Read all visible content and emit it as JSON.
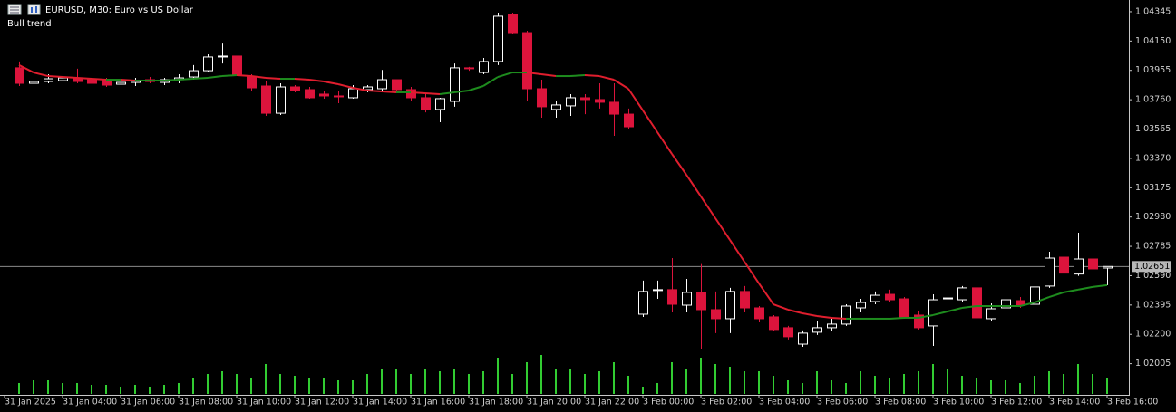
{
  "chart_data": {
    "type": "candlestick",
    "title": "EURUSD, M30:  Euro vs US Dollar",
    "indicator": "Bull trend",
    "x_labels": [
      "31 Jan 2025",
      "31 Jan 04:00",
      "31 Jan 06:00",
      "31 Jan 08:00",
      "31 Jan 10:00",
      "31 Jan 12:00",
      "31 Jan 14:00",
      "31 Jan 16:00",
      "31 Jan 18:00",
      "31 Jan 20:00",
      "31 Jan 22:00",
      "3 Feb 00:00",
      "3 Feb 02:00",
      "3 Feb 04:00",
      "3 Feb 06:00",
      "3 Feb 08:00",
      "3 Feb 10:00",
      "3 Feb 12:00",
      "3 Feb 14:00",
      "3 Feb 16:00"
    ],
    "open": [
      1.03972,
      1.03869,
      1.03881,
      1.03887,
      1.03905,
      1.03893,
      1.03887,
      1.03863,
      1.03875,
      1.03893,
      1.03875,
      1.03893,
      1.03911,
      1.03953,
      1.04044,
      1.0405,
      1.03911,
      1.03851,
      1.0367,
      1.03845,
      1.03827,
      1.03797,
      1.03785,
      1.03773,
      1.03827,
      1.03833,
      1.03893,
      1.03827,
      1.03773,
      1.03695,
      1.03749,
      1.03972,
      1.03941,
      1.04014,
      1.04327,
      1.04206,
      1.03833,
      1.03695,
      1.03719,
      1.03773,
      1.03761,
      1.03743,
      1.03664,
      1.02334,
      1.02491,
      1.02497,
      1.02394,
      1.02479,
      1.02364,
      1.02304,
      1.02485,
      1.02376,
      1.02316,
      1.02244,
      1.02135,
      1.02214,
      1.02244,
      1.02268,
      1.02376,
      1.02418,
      1.02466,
      1.02436,
      1.02328,
      1.02256,
      1.02436,
      1.0243,
      1.02509,
      1.02304,
      1.02376,
      1.02424,
      1.024,
      1.02521,
      1.02713,
      1.02601,
      1.02701,
      1.02641
    ],
    "high": [
      1.04014,
      1.03917,
      1.03929,
      1.03929,
      1.03966,
      1.03917,
      1.03905,
      1.03893,
      1.03905,
      1.03911,
      1.03905,
      1.03929,
      1.0399,
      1.04062,
      1.04133,
      1.0405,
      1.03929,
      1.03881,
      1.03869,
      1.03857,
      1.03845,
      1.03821,
      1.03821,
      1.03857,
      1.03857,
      1.03958,
      1.03893,
      1.03845,
      1.03797,
      1.03773,
      1.04001,
      1.03978,
      1.04038,
      1.04339,
      1.04339,
      1.04218,
      1.03893,
      1.03749,
      1.03797,
      1.03797,
      1.03869,
      1.03869,
      1.03701,
      1.02557,
      1.02557,
      1.02707,
      1.02569,
      1.02667,
      1.02485,
      1.02509,
      1.02521,
      1.02388,
      1.02328,
      1.02256,
      1.02226,
      1.02286,
      1.02304,
      1.024,
      1.02436,
      1.02485,
      1.02497,
      1.02448,
      1.02358,
      1.02466,
      1.02509,
      1.02521,
      1.02521,
      1.02406,
      1.02448,
      1.02448,
      1.02545,
      1.02749,
      1.02762,
      1.02876,
      1.02701,
      1.02653
    ],
    "low": [
      1.03851,
      1.03779,
      1.03869,
      1.03869,
      1.03869,
      1.03851,
      1.03845,
      1.03839,
      1.03851,
      1.03869,
      1.03857,
      1.03869,
      1.03893,
      1.03941,
      1.04001,
      1.03929,
      1.03821,
      1.03652,
      1.03658,
      1.03809,
      1.03767,
      1.03767,
      1.03737,
      1.03767,
      1.03809,
      1.03821,
      1.03815,
      1.03749,
      1.03676,
      1.0361,
      1.03713,
      1.03953,
      1.03929,
      1.0399,
      1.04194,
      1.03749,
      1.0364,
      1.0364,
      1.03652,
      1.03664,
      1.03701,
      1.0352,
      1.03568,
      1.02316,
      1.02436,
      1.02346,
      1.02346,
      1.02105,
      1.02208,
      1.02208,
      1.02346,
      1.0228,
      1.0222,
      1.02166,
      1.02117,
      1.02196,
      1.0222,
      1.02256,
      1.02346,
      1.024,
      1.02418,
      1.02304,
      1.02232,
      1.02123,
      1.02406,
      1.02412,
      1.02268,
      1.02292,
      1.02352,
      1.02376,
      1.02376,
      1.02509,
      1.02607,
      1.02589,
      1.02617,
      1.02527
    ],
    "close": [
      1.03869,
      1.03881,
      1.03899,
      1.03905,
      1.03881,
      1.03869,
      1.03857,
      1.03875,
      1.03887,
      1.03881,
      1.03893,
      1.03905,
      1.03953,
      1.04044,
      1.0405,
      1.03929,
      1.03839,
      1.0367,
      1.03845,
      1.03821,
      1.03773,
      1.03785,
      1.03779,
      1.03833,
      1.03845,
      1.03893,
      1.03827,
      1.03773,
      1.03695,
      1.03767,
      1.03972,
      1.03966,
      1.04014,
      1.04315,
      1.04206,
      1.03833,
      1.03713,
      1.03725,
      1.03773,
      1.03761,
      1.03743,
      1.03664,
      1.0358,
      1.02485,
      1.02497,
      1.024,
      1.02479,
      1.02364,
      1.02304,
      1.02485,
      1.02376,
      1.02304,
      1.02232,
      1.02184,
      1.02208,
      1.02244,
      1.02268,
      1.02388,
      1.02412,
      1.0246,
      1.0243,
      1.02316,
      1.02244,
      1.0243,
      1.02442,
      1.02509,
      1.0231,
      1.0237,
      1.0243,
      1.02394,
      1.02515,
      1.02707,
      1.02607,
      1.02701,
      1.02635,
      1.02651
    ],
    "volume": [
      12,
      15,
      15,
      12,
      12,
      10,
      10,
      8,
      10,
      8,
      10,
      12,
      18,
      22,
      25,
      22,
      18,
      33,
      22,
      20,
      18,
      18,
      15,
      15,
      22,
      28,
      28,
      22,
      28,
      25,
      28,
      22,
      25,
      40,
      22,
      35,
      43,
      28,
      28,
      22,
      25,
      35,
      20,
      8,
      12,
      35,
      28,
      40,
      33,
      30,
      25,
      25,
      20,
      15,
      12,
      25,
      15,
      12,
      25,
      20,
      18,
      22,
      25,
      33,
      28,
      20,
      18,
      15,
      15,
      12,
      20,
      25,
      22,
      33,
      22,
      18
    ],
    "volume_color": "#32cd32",
    "bull_color": "#ffffff",
    "bear_color": "#dc143c",
    "ma": {
      "values": [
        1.0399,
        1.03941,
        1.03917,
        1.03911,
        1.03905,
        1.03899,
        1.03893,
        1.03893,
        1.03887,
        1.03887,
        1.03887,
        1.03893,
        1.03899,
        1.03905,
        1.03917,
        1.03923,
        1.03917,
        1.03905,
        1.03899,
        1.03899,
        1.03893,
        1.03881,
        1.03863,
        1.03839,
        1.03821,
        1.03815,
        1.03809,
        1.03809,
        1.03803,
        1.03797,
        1.03809,
        1.03821,
        1.03851,
        1.03911,
        1.03941,
        1.03941,
        1.03929,
        1.03917,
        1.03917,
        1.03923,
        1.03917,
        1.03893,
        1.03833,
        1.03689,
        1.03544,
        1.034,
        1.03261,
        1.03117,
        1.02972,
        1.02828,
        1.02683,
        1.02539,
        1.024,
        1.02364,
        1.0234,
        1.02322,
        1.0231,
        1.02304,
        1.02304,
        1.02304,
        1.02304,
        1.0231,
        1.0231,
        1.02328,
        1.02352,
        1.02376,
        1.02388,
        1.02388,
        1.02388,
        1.02388,
        1.02412,
        1.02448,
        1.02479,
        1.02497,
        1.02515,
        1.02527
      ],
      "up_color": "#1e8c1e",
      "down_color": "#e01e2e"
    },
    "ylim": [
      1.01804,
      1.04423
    ],
    "yticks": [
      1.04345,
      {
        "value": 1.0415,
        "label": "1.04150"
      },
      1.03955,
      {
        "value": 1.0376,
        "label": "1.03760"
      },
      1.03565,
      {
        "value": 1.0337,
        "label": "1.03370"
      },
      1.03175,
      {
        "value": 1.0298,
        "label": "1.02980"
      },
      1.02785,
      {
        "value": 1.0259,
        "label": "1.02590"
      },
      1.02395,
      {
        "value": 1.022,
        "label": "1.02200"
      },
      1.02005
    ],
    "current_price": 1.02651
  }
}
